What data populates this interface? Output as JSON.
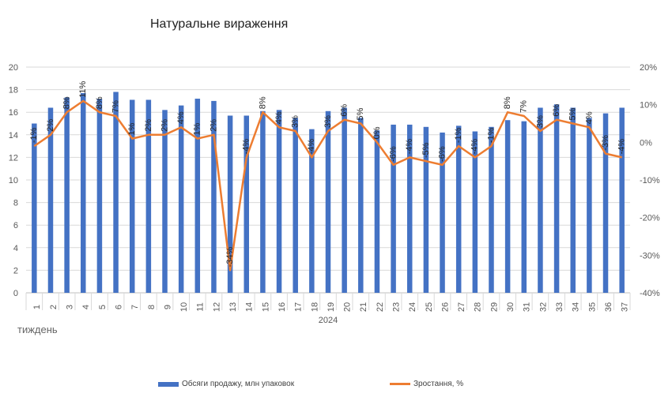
{
  "chart_data": {
    "type": "bar",
    "title": "Натуральне вираження",
    "xlabel": "тиждень",
    "year_label": "2024",
    "categories": [
      "1",
      "2",
      "3",
      "4",
      "5",
      "6",
      "7",
      "8",
      "9",
      "10",
      "11",
      "12",
      "13",
      "14",
      "15",
      "16",
      "17",
      "18",
      "19",
      "20",
      "21",
      "22",
      "23",
      "24",
      "25",
      "26",
      "27",
      "28",
      "29",
      "30",
      "31",
      "32",
      "33",
      "34",
      "35",
      "36",
      "37"
    ],
    "series": [
      {
        "name": "Обсяги продажу, млн упаковок",
        "type": "bar",
        "axis": "left",
        "color": "#4472C4",
        "values": [
          15.0,
          16.4,
          17.3,
          17.7,
          17.2,
          17.8,
          17.1,
          17.1,
          16.2,
          16.6,
          17.2,
          17.0,
          15.7,
          15.7,
          16.1,
          16.2,
          15.5,
          14.5,
          16.1,
          16.4,
          15.5,
          14.4,
          14.9,
          14.9,
          14.7,
          14.2,
          14.8,
          14.3,
          14.7,
          15.3,
          15.2,
          16.4,
          16.7,
          16.4,
          15.5,
          15.9,
          16.4
        ]
      },
      {
        "name": "Зростання, %",
        "type": "line",
        "axis": "right",
        "color": "#ED7D31",
        "values": [
          -1,
          2,
          8,
          11,
          8,
          7,
          1,
          2,
          2,
          4,
          1,
          2,
          -34,
          -4,
          8,
          4,
          3,
          -4,
          3,
          6,
          5,
          0,
          -6,
          -4,
          -5,
          -6,
          -1,
          -4,
          -1,
          8,
          7,
          3,
          6,
          5,
          4,
          -3,
          -4
        ],
        "labels": [
          "-1%",
          "2%",
          "8%",
          "11%",
          "8%",
          "7%",
          "1%",
          "2%",
          "2%",
          "4%",
          "1%",
          "2%",
          "-34%",
          "-4%",
          "8%",
          "4%",
          "3%",
          "-4%",
          "3%",
          "6%",
          "5%",
          "0%",
          "-6%",
          "-4%",
          "-5%",
          "-6%",
          "-1%",
          "-4%",
          "-1%",
          "8%",
          "7%",
          "3%",
          "6%",
          "5%",
          "4%",
          "-3%",
          "-4%"
        ]
      }
    ],
    "ylim_left": [
      0,
      20
    ],
    "yticks_left": [
      "0",
      "2",
      "4",
      "6",
      "8",
      "10",
      "12",
      "14",
      "16",
      "18",
      "20"
    ],
    "ylim_right": [
      -40,
      20
    ],
    "yticks_right": [
      "-40%",
      "-30%",
      "-20%",
      "-10%",
      "0%",
      "10%",
      "20%"
    ],
    "grid": true,
    "legend_position": "bottom"
  }
}
